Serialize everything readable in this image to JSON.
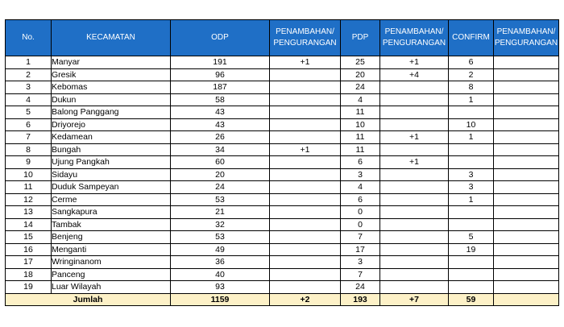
{
  "headers": {
    "no": "No.",
    "kecamatan": "KECAMATAN",
    "odp": "ODP",
    "pen1": "PENAMBAHAN/ PENGURANGAN",
    "pdp": "PDP",
    "pen2": "PENAMBAHAN/ PENGURANGAN",
    "confirm": "CONFIRM",
    "pen3": "PENAMBAHAN/ PENGURANGAN"
  },
  "rows": [
    {
      "no": "1",
      "kecamatan": "Manyar",
      "odp": "191",
      "pen1": "+1",
      "pdp": "25",
      "pen2": "+1",
      "confirm": "6",
      "pen3": ""
    },
    {
      "no": "2",
      "kecamatan": "Gresik",
      "odp": "96",
      "pen1": "",
      "pdp": "20",
      "pen2": "+4",
      "confirm": "2",
      "pen3": ""
    },
    {
      "no": "3",
      "kecamatan": "Kebomas",
      "odp": "187",
      "pen1": "",
      "pdp": "24",
      "pen2": "",
      "confirm": "8",
      "pen3": ""
    },
    {
      "no": "4",
      "kecamatan": "Dukun",
      "odp": "58",
      "pen1": "",
      "pdp": "4",
      "pen2": "",
      "confirm": "1",
      "pen3": ""
    },
    {
      "no": "5",
      "kecamatan": "Balong Panggang",
      "odp": "43",
      "pen1": "",
      "pdp": "11",
      "pen2": "",
      "confirm": "",
      "pen3": ""
    },
    {
      "no": "6",
      "kecamatan": "Driyorejo",
      "odp": "43",
      "pen1": "",
      "pdp": "10",
      "pen2": "",
      "confirm": "10",
      "pen3": ""
    },
    {
      "no": "7",
      "kecamatan": "Kedamean",
      "odp": "26",
      "pen1": "",
      "pdp": "11",
      "pen2": "+1",
      "confirm": "1",
      "pen3": ""
    },
    {
      "no": "8",
      "kecamatan": "Bungah",
      "odp": "34",
      "pen1": "+1",
      "pdp": "11",
      "pen2": "",
      "confirm": "",
      "pen3": ""
    },
    {
      "no": "9",
      "kecamatan": "Ujung Pangkah",
      "odp": "60",
      "pen1": "",
      "pdp": "6",
      "pen2": "+1",
      "confirm": "",
      "pen3": ""
    },
    {
      "no": "10",
      "kecamatan": "Sidayu",
      "odp": "20",
      "pen1": "",
      "pdp": "3",
      "pen2": "",
      "confirm": "3",
      "pen3": ""
    },
    {
      "no": "11",
      "kecamatan": "Duduk Sampeyan",
      "odp": "24",
      "pen1": "",
      "pdp": "4",
      "pen2": "",
      "confirm": "3",
      "pen3": ""
    },
    {
      "no": "12",
      "kecamatan": "Cerme",
      "odp": "53",
      "pen1": "",
      "pdp": "6",
      "pen2": "",
      "confirm": "1",
      "pen3": ""
    },
    {
      "no": "13",
      "kecamatan": "Sangkapura",
      "odp": "21",
      "pen1": "",
      "pdp": "0",
      "pen2": "",
      "confirm": "",
      "pen3": ""
    },
    {
      "no": "14",
      "kecamatan": "Tambak",
      "odp": "32",
      "pen1": "",
      "pdp": "0",
      "pen2": "",
      "confirm": "",
      "pen3": ""
    },
    {
      "no": "15",
      "kecamatan": "Benjeng",
      "odp": "53",
      "pen1": "",
      "pdp": "7",
      "pen2": "",
      "confirm": "5",
      "pen3": ""
    },
    {
      "no": "16",
      "kecamatan": "Menganti",
      "odp": "49",
      "pen1": "",
      "pdp": "17",
      "pen2": "",
      "confirm": "19",
      "pen3": ""
    },
    {
      "no": "17",
      "kecamatan": "Wringinanom",
      "odp": "36",
      "pen1": "",
      "pdp": "3",
      "pen2": "",
      "confirm": "",
      "pen3": ""
    },
    {
      "no": "18",
      "kecamatan": "Panceng",
      "odp": "40",
      "pen1": "",
      "pdp": "7",
      "pen2": "",
      "confirm": "",
      "pen3": ""
    },
    {
      "no": "19",
      "kecamatan": "Luar Wilayah",
      "odp": "93",
      "pen1": "",
      "pdp": "24",
      "pen2": "",
      "confirm": "",
      "pen3": ""
    }
  ],
  "total": {
    "label": "Jumlah",
    "odp": "1159",
    "pen1": "+2",
    "pdp": "193",
    "pen2": "+7",
    "confirm": "59",
    "pen3": ""
  },
  "colors": {
    "header_bg": "#1f6fc6",
    "total_bg": "#fdf1c7"
  }
}
